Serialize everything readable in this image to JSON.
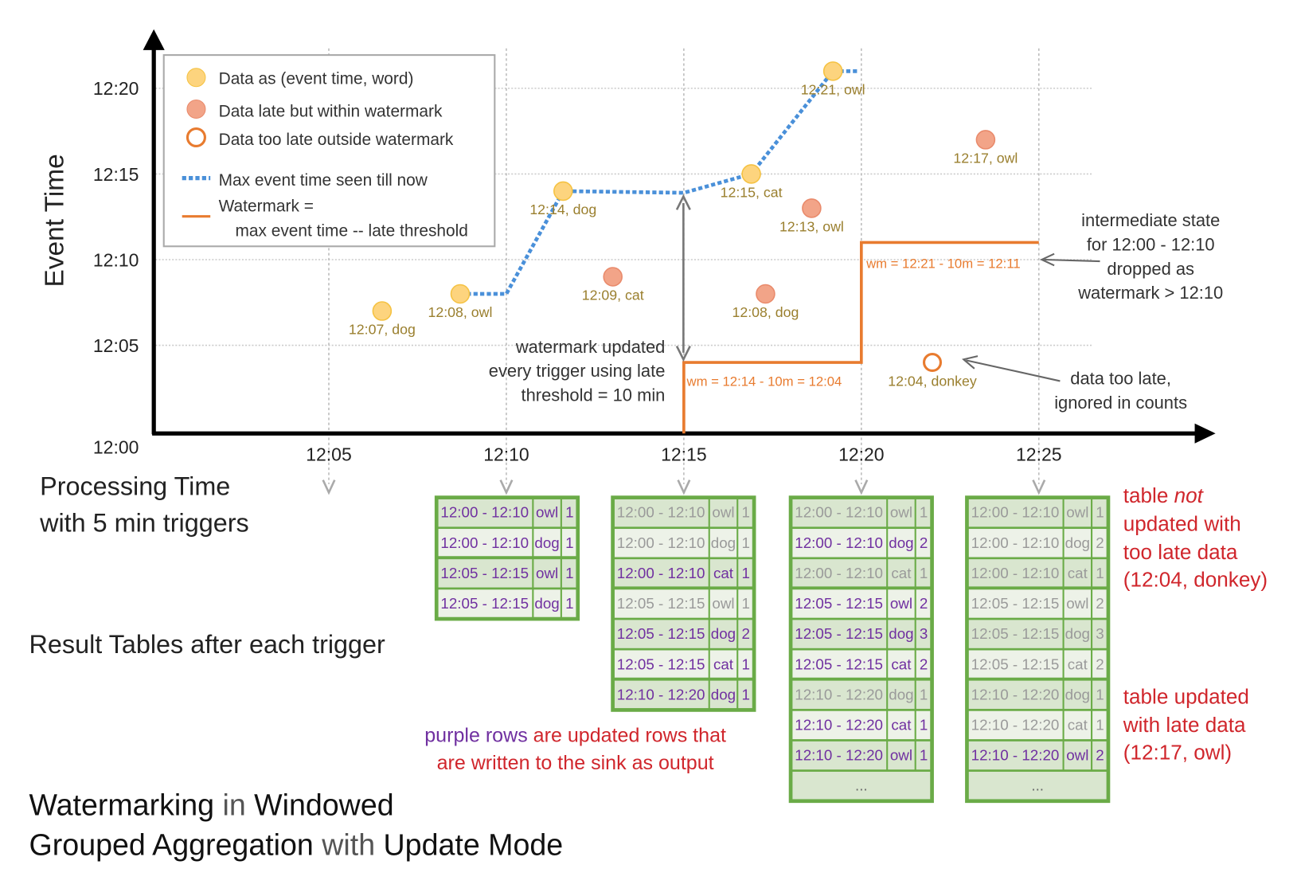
{
  "axes": {
    "y_label": "Event Time",
    "y_ticks": [
      "12:00",
      "12:05",
      "12:10",
      "12:15",
      "12:20"
    ],
    "x_ticks": [
      "12:05",
      "12:10",
      "12:15",
      "12:20",
      "12:25"
    ],
    "x_label_line1": "Processing Time",
    "x_label_line2": "with 5 min triggers"
  },
  "legend": {
    "data": "Data as (event time, word)",
    "late": "Data late but within watermark",
    "too_late": "Data too late outside watermark",
    "max_line": "Max event time seen till now",
    "wm_line1": "Watermark =",
    "wm_line2": "max event time -- late threshold"
  },
  "colors": {
    "on_time": "#fdd47e",
    "late": "#f2a488",
    "too_late": "#e87b2f",
    "max_line": "#4a90d9",
    "watermark": "#e87b2f",
    "updated": "#7030a0",
    "unchanged": "#9a9a9a",
    "table_border": "#6aab47",
    "red_note": "#d0262c"
  },
  "points": [
    {
      "proc": "12:06.5",
      "event": "12:07",
      "word": "dog",
      "kind": "on_time",
      "label": "12:07, dog"
    },
    {
      "proc": "12:08.7",
      "event": "12:08",
      "word": "owl",
      "kind": "on_time",
      "label": "12:08, owl"
    },
    {
      "proc": "12:11.6",
      "event": "12:14",
      "word": "dog",
      "kind": "on_time",
      "label": "12:14, dog"
    },
    {
      "proc": "12:13",
      "event": "12:09",
      "word": "cat",
      "kind": "late",
      "label": "12:09, cat"
    },
    {
      "proc": "12:16.9",
      "event": "12:15",
      "word": "cat",
      "kind": "on_time",
      "label": "12:15, cat"
    },
    {
      "proc": "12:17.3",
      "event": "12:08",
      "word": "dog",
      "kind": "late",
      "label": "12:08, dog"
    },
    {
      "proc": "12:18.6",
      "event": "12:13",
      "word": "owl",
      "kind": "late",
      "label": "12:13, owl"
    },
    {
      "proc": "12:19.2",
      "event": "12:21",
      "word": "owl",
      "kind": "on_time",
      "label": "12:21, owl"
    },
    {
      "proc": "12:22",
      "event": "12:04",
      "word": "donkey",
      "kind": "too_late",
      "label": "12:04, donkey"
    },
    {
      "proc": "12:23.5",
      "event": "12:17",
      "word": "owl",
      "kind": "late",
      "label": "12:17, owl"
    }
  ],
  "annotations": {
    "wm_updated": [
      "watermark updated",
      "every trigger using late",
      "threshold = 10 min"
    ],
    "wm1": "wm = 12:14 - 10m = 12:04",
    "wm2": "wm = 12:21 - 10m = 12:11",
    "intermediate": [
      "intermediate state",
      "for 12:00 - 12:10",
      "dropped as",
      "watermark > 12:10"
    ],
    "too_late": [
      "data too late,",
      "ignored in counts"
    ],
    "result_tables": "Result Tables after each trigger",
    "purple_a": "purple rows",
    "purple_b": " are updated rows that",
    "purple_c": "are written to the sink as output",
    "not_updated": {
      "a": "table ",
      "b": "not",
      "c": "updated with",
      "d": "too late data",
      "e": "(12:04, donkey)"
    },
    "updated": [
      "table updated",
      "with late data",
      "(12:17, owl)"
    ]
  },
  "title": {
    "a": "Watermarking",
    "b": " in ",
    "c": "Windowed",
    "d": "Grouped Aggregation",
    "e": " with ",
    "f": "Update Mode"
  },
  "tables": [
    {
      "trigger": "12:10",
      "ellipsis": "",
      "rows": [
        [
          "12:00 - 12:10",
          "owl",
          "1",
          true
        ],
        [
          "12:00 - 12:10",
          "dog",
          "1",
          true
        ],
        [
          "12:05 - 12:15",
          "owl",
          "1",
          true
        ],
        [
          "12:05 - 12:15",
          "dog",
          "1",
          true
        ]
      ]
    },
    {
      "trigger": "12:15",
      "ellipsis": "",
      "rows": [
        [
          "12:00 - 12:10",
          "owl",
          "1",
          false
        ],
        [
          "12:00 - 12:10",
          "dog",
          "1",
          false
        ],
        [
          "12:00 - 12:10",
          "cat",
          "1",
          true
        ],
        [
          "12:05 - 12:15",
          "owl",
          "1",
          false
        ],
        [
          "12:05 - 12:15",
          "dog",
          "2",
          true
        ],
        [
          "12:05 - 12:15",
          "cat",
          "1",
          true
        ],
        [
          "12:10 - 12:20",
          "dog",
          "1",
          true
        ]
      ]
    },
    {
      "trigger": "12:20",
      "ellipsis": "...",
      "rows": [
        [
          "12:00 - 12:10",
          "owl",
          "1",
          false
        ],
        [
          "12:00 - 12:10",
          "dog",
          "2",
          true
        ],
        [
          "12:00 - 12:10",
          "cat",
          "1",
          false
        ],
        [
          "12:05 - 12:15",
          "owl",
          "2",
          true
        ],
        [
          "12:05 - 12:15",
          "dog",
          "3",
          true
        ],
        [
          "12:05 - 12:15",
          "cat",
          "2",
          true
        ],
        [
          "12:10 - 12:20",
          "dog",
          "1",
          false
        ],
        [
          "12:10 - 12:20",
          "cat",
          "1",
          true
        ],
        [
          "12:10 - 12:20",
          "owl",
          "1",
          true
        ]
      ]
    },
    {
      "trigger": "12:25",
      "ellipsis": "...",
      "rows": [
        [
          "12:00 - 12:10",
          "owl",
          "1",
          false
        ],
        [
          "12:00 - 12:10",
          "dog",
          "2",
          false
        ],
        [
          "12:00 - 12:10",
          "cat",
          "1",
          false
        ],
        [
          "12:05 - 12:15",
          "owl",
          "2",
          false
        ],
        [
          "12:05 - 12:15",
          "dog",
          "3",
          false
        ],
        [
          "12:05 - 12:15",
          "cat",
          "2",
          false
        ],
        [
          "12:10 - 12:20",
          "dog",
          "1",
          false
        ],
        [
          "12:10 - 12:20",
          "cat",
          "1",
          false
        ],
        [
          "12:10 - 12:20",
          "owl",
          "2",
          true
        ]
      ]
    }
  ]
}
